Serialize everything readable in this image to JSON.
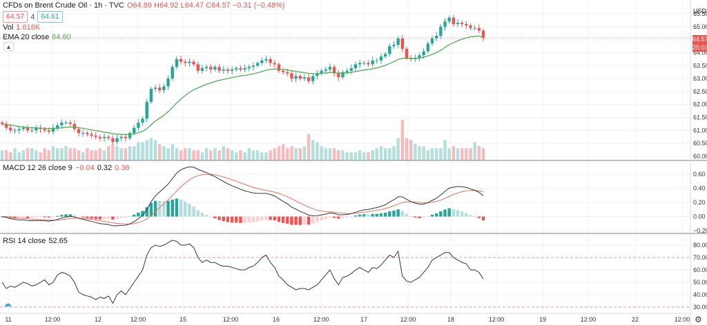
{
  "header": {
    "symbol_title": "CFDs on Brent Crude Oil · 1h · TVC",
    "ohlc": "O64.89 H64.92 L64.47 C64.57 −0.31 (−0.48%)",
    "bid": "64.57",
    "spread": "4",
    "ask": "64.61"
  },
  "legends": {
    "vol_label": "Vol",
    "vol_value": "1.616K",
    "ema_label": "EMA 20 close",
    "ema_value": "64.60",
    "macd_label": "MACD 12 26 close 9",
    "macd_v1": "−0.04",
    "macd_v2": "0.32",
    "macd_v3": "0.36",
    "rsi_label": "RSI 14 close",
    "rsi_value": "52.65"
  },
  "price_axis": {
    "currency": "USD",
    "last_price": "64.57",
    "countdown": "25:03"
  },
  "colors": {
    "up": "#26a69a",
    "down": "#ef5350",
    "ema": "#4caf50",
    "macd": "#333333",
    "signal": "#ef6c5a",
    "rsi": "#333333",
    "rsi_band": "#ef5350",
    "grid": "#eef0f3"
  },
  "icons": {
    "collapse": "chevron-up-icon",
    "settings": "gear-icon",
    "logo": "cloud-icon"
  },
  "chart_data": [
    {
      "type": "candlestick",
      "title": "CFDs on Brent Crude Oil · 1h · TVC",
      "ylim": [
        60.0,
        65.5
      ],
      "y_ticks": [
        "65.50",
        "65.00",
        "64.50",
        "64.00",
        "63.50",
        "63.00",
        "62.50",
        "62.00",
        "61.50",
        "61.00",
        "60.50",
        "60.00"
      ],
      "x_tick_labels": [
        "11",
        "12:00",
        "12",
        "12:00",
        "15",
        "12:00",
        "16",
        "12:00",
        "17",
        "12:00",
        "18",
        "12:00",
        "19",
        "12:00",
        "22",
        "12:00"
      ],
      "closes": [
        61.25,
        61.1,
        61.0,
        61.0,
        61.05,
        61.1,
        61.0,
        61.0,
        61.1,
        61.05,
        61.0,
        60.95,
        61.1,
        61.2,
        61.3,
        61.3,
        61.25,
        61.05,
        60.9,
        60.9,
        60.85,
        60.8,
        60.75,
        60.7,
        60.75,
        60.7,
        60.55,
        60.7,
        60.75,
        60.7,
        60.9,
        61.1,
        61.3,
        61.45,
        62.1,
        62.6,
        62.65,
        62.55,
        62.7,
        63.0,
        63.45,
        63.75,
        63.65,
        63.6,
        63.65,
        63.55,
        63.3,
        63.4,
        63.45,
        63.35,
        63.45,
        63.3,
        63.35,
        63.3,
        63.35,
        63.4,
        63.35,
        63.4,
        63.45,
        63.5,
        63.6,
        63.7,
        63.75,
        63.6,
        63.55,
        63.3,
        63.25,
        63.2,
        63.0,
        63.1,
        63.0,
        63.05,
        62.9,
        63.1,
        63.2,
        63.3,
        63.35,
        63.45,
        63.2,
        63.05,
        63.25,
        63.3,
        63.4,
        63.55,
        63.6,
        63.6,
        63.55,
        63.7,
        63.7,
        63.85,
        63.95,
        64.25,
        64.3,
        64.55,
        64.15,
        63.8,
        63.75,
        63.8,
        63.9,
        64.05,
        64.35,
        64.55,
        64.65,
        65.0,
        65.2,
        65.35,
        65.1,
        65.15,
        65.1,
        65.05,
        64.95,
        64.95,
        64.85,
        64.57
      ],
      "ema20": [
        61.25,
        61.22,
        61.2,
        61.18,
        61.15,
        61.13,
        61.11,
        61.1,
        61.1,
        61.09,
        61.08,
        61.07,
        61.07,
        61.08,
        61.1,
        61.12,
        61.13,
        61.12,
        61.1,
        61.08,
        61.05,
        61.02,
        60.99,
        60.96,
        60.93,
        60.91,
        60.87,
        60.86,
        60.85,
        60.84,
        60.85,
        60.87,
        60.91,
        60.96,
        61.07,
        61.22,
        61.36,
        61.47,
        61.59,
        61.72,
        61.88,
        62.06,
        62.21,
        62.34,
        62.47,
        62.57,
        62.64,
        62.71,
        62.78,
        62.83,
        62.89,
        62.93,
        62.97,
        63.0,
        63.04,
        63.07,
        63.1,
        63.12,
        63.15,
        63.18,
        63.22,
        63.27,
        63.32,
        63.35,
        63.37,
        63.36,
        63.35,
        63.33,
        63.3,
        63.28,
        63.25,
        63.23,
        63.2,
        63.19,
        63.19,
        63.2,
        63.21,
        63.23,
        63.23,
        63.21,
        63.22,
        63.22,
        63.24,
        63.27,
        63.3,
        63.33,
        63.35,
        63.38,
        63.41,
        63.46,
        63.51,
        63.58,
        63.65,
        63.74,
        63.78,
        63.78,
        63.78,
        63.78,
        63.79,
        63.82,
        63.87,
        63.93,
        64.0,
        64.09,
        64.2,
        64.31,
        64.38,
        64.46,
        64.52,
        64.57,
        64.61,
        64.63,
        64.64,
        64.6
      ]
    },
    {
      "type": "bar",
      "title": "Vol",
      "values_relative": [
        0.25,
        0.25,
        0.2,
        0.3,
        0.2,
        0.25,
        0.3,
        0.3,
        0.25,
        0.2,
        0.3,
        0.25,
        0.35,
        0.3,
        0.3,
        0.35,
        0.3,
        0.3,
        0.25,
        0.2,
        0.3,
        0.25,
        0.25,
        0.3,
        0.25,
        0.35,
        0.4,
        0.35,
        0.3,
        0.3,
        0.35,
        0.35,
        0.45,
        0.45,
        0.5,
        0.55,
        0.5,
        0.4,
        0.35,
        0.3,
        0.4,
        0.3,
        0.25,
        0.3,
        0.3,
        0.25,
        0.25,
        0.2,
        0.3,
        0.25,
        0.3,
        0.25,
        0.35,
        0.3,
        0.25,
        0.2,
        0.25,
        0.2,
        0.3,
        0.25,
        0.25,
        0.2,
        0.2,
        0.25,
        0.3,
        0.35,
        0.4,
        0.3,
        0.35,
        0.3,
        0.3,
        0.35,
        0.65,
        0.5,
        0.45,
        0.35,
        0.3,
        0.3,
        0.3,
        0.25,
        0.25,
        0.2,
        0.2,
        0.2,
        0.25,
        0.2,
        0.2,
        0.25,
        0.3,
        0.35,
        0.3,
        0.3,
        0.35,
        0.55,
        1.0,
        0.55,
        0.5,
        0.4,
        0.35,
        0.35,
        0.25,
        0.3,
        0.3,
        0.3,
        0.5,
        0.3,
        0.35,
        0.3,
        0.3,
        0.3,
        0.3,
        0.45,
        0.35,
        0.3
      ]
    },
    {
      "type": "line",
      "title": "MACD 12 26 close 9",
      "ylim": [
        -0.22,
        0.68
      ],
      "y_ticks": [
        "0.60",
        "0.40",
        "0.20",
        "0.00",
        "−0.20"
      ]
    },
    {
      "type": "line",
      "title": "RSI 14 close",
      "ylim": [
        20,
        86
      ],
      "y_ticks": [
        "80.00",
        "70.00",
        "60.00",
        "50.00",
        "40.00",
        "30.00"
      ],
      "bands": [
        70,
        30
      ],
      "values": [
        50,
        45,
        47,
        46,
        48,
        50,
        49,
        47,
        48,
        50,
        52,
        48,
        50,
        56,
        58,
        57,
        55,
        50,
        42,
        40,
        39,
        38,
        36,
        38,
        37,
        39,
        33,
        40,
        43,
        40,
        45,
        50,
        55,
        60,
        72,
        78,
        80,
        79,
        80,
        82,
        84,
        83,
        80,
        80,
        81,
        78,
        70,
        66,
        68,
        66,
        66,
        64,
        63,
        63,
        62,
        61,
        60,
        60,
        62,
        63,
        66,
        70,
        72,
        66,
        62,
        55,
        52,
        48,
        46,
        44,
        45,
        45,
        44,
        46,
        48,
        52,
        56,
        60,
        53,
        48,
        54,
        55,
        57,
        60,
        62,
        60,
        58,
        62,
        61,
        64,
        68,
        72,
        70,
        75,
        55,
        51,
        50,
        52,
        54,
        58,
        62,
        68,
        70,
        72,
        74,
        74,
        70,
        68,
        66,
        65,
        60,
        60,
        58,
        52.65
      ]
    }
  ]
}
